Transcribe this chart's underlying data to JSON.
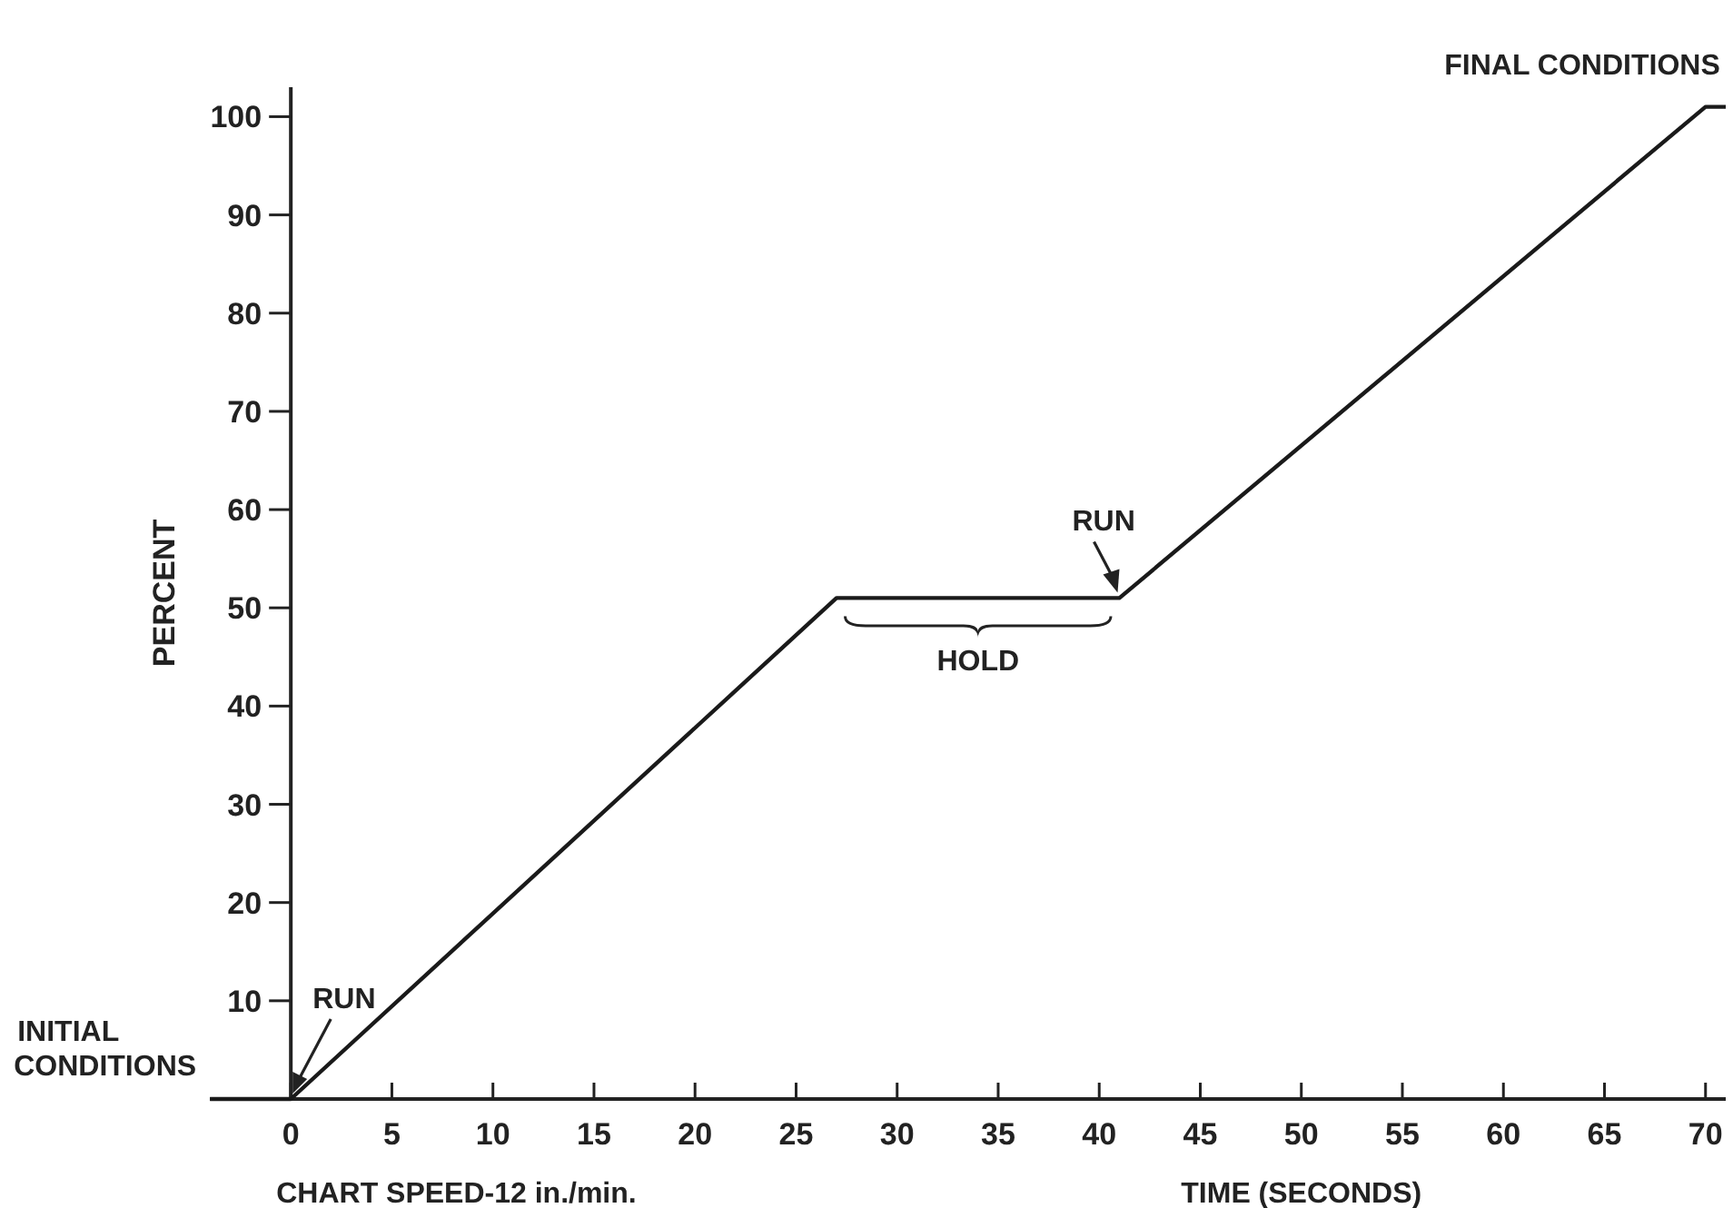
{
  "chart_data": {
    "type": "line",
    "xlabel": "TIME (SECONDS)",
    "ylabel": "PERCENT",
    "x": [
      -4,
      0,
      27,
      41,
      70,
      71
    ],
    "series": [
      {
        "color": "#1a1a1a",
        "values": [
          0,
          0,
          51,
          51,
          101,
          101
        ]
      }
    ],
    "xlim": [
      -4,
      71
    ],
    "xticks": [
      0,
      5,
      10,
      15,
      20,
      25,
      30,
      35,
      40,
      45,
      50,
      55,
      60,
      65,
      70
    ],
    "ylim": [
      0,
      103
    ],
    "yticks": [
      10,
      20,
      30,
      40,
      50,
      60,
      70,
      80,
      90,
      100
    ],
    "grid": false,
    "marker": "none",
    "line_style": "solid",
    "annotations": [
      {
        "text": "INITIAL CONDITIONS",
        "x": -4,
        "y": 0
      },
      {
        "text": "RUN",
        "x": 0,
        "y": 0
      },
      {
        "text": "RUN",
        "x": 41,
        "y": 51
      },
      {
        "text": "HOLD",
        "x": 34,
        "y": 51
      },
      {
        "text": "FINAL CONDITIONS",
        "x": 70,
        "y": 101
      },
      "CHART SPEED-12 in./min."
    ]
  }
}
